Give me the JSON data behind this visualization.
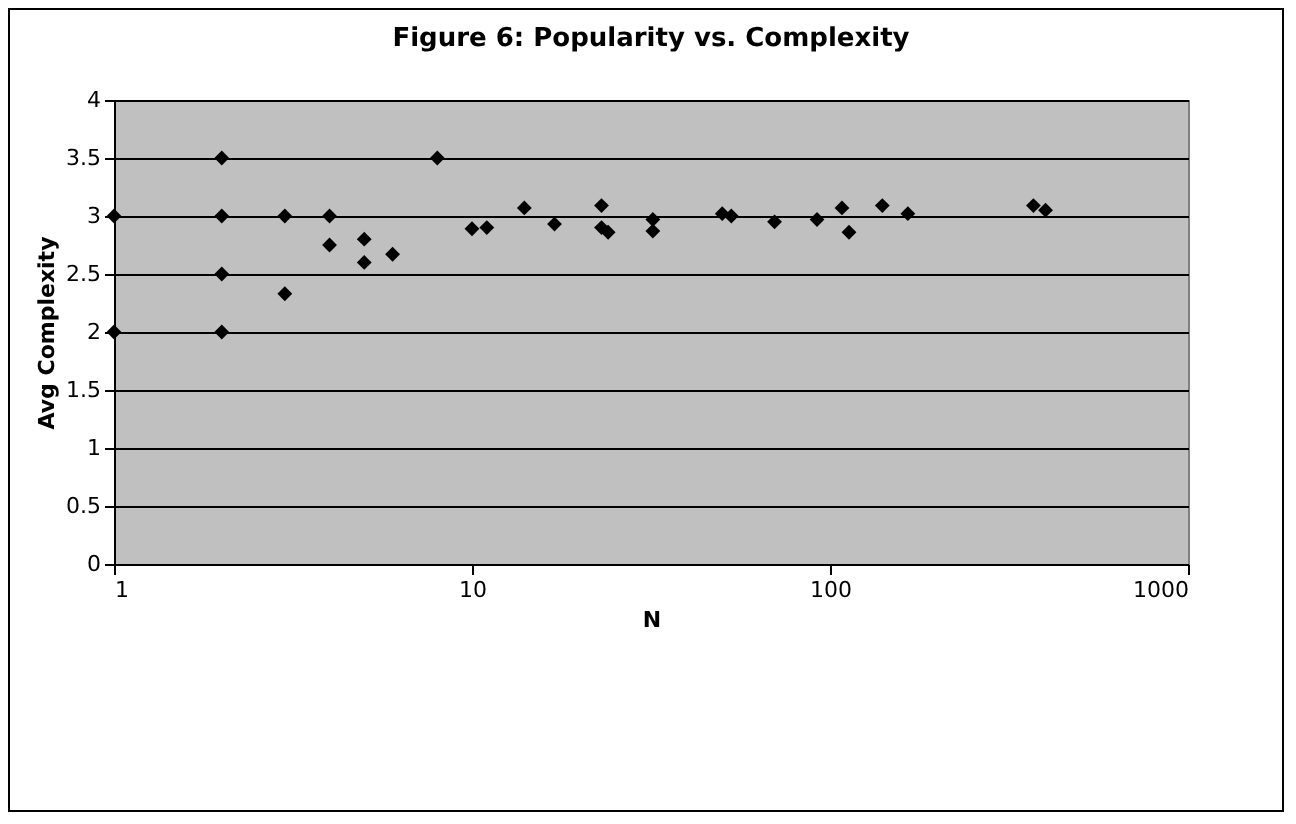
{
  "chart_data": {
    "type": "scatter",
    "title": "Figure 6: Popularity vs. Complexity",
    "xlabel": "N",
    "ylabel": "Avg Complexity",
    "x": [
      1,
      1,
      2,
      2,
      2,
      2,
      3,
      3,
      4,
      4,
      5,
      5,
      6,
      8,
      10,
      11,
      14,
      17,
      23,
      23,
      24,
      32,
      32,
      50,
      53,
      70,
      92,
      108,
      113,
      140,
      165,
      370,
      400
    ],
    "series": [
      {
        "color": "#000000",
        "values": [
          3,
          2,
          3.5,
          3,
          2.5,
          2,
          3,
          2.33,
          3,
          2.75,
          2.8,
          2.6,
          2.67,
          3.5,
          2.89,
          2.9,
          3.07,
          2.93,
          3.09,
          2.9,
          2.86,
          2.97,
          2.87,
          3.02,
          3.0,
          2.95,
          2.97,
          3.07,
          2.86,
          3.09,
          3.02,
          3.09,
          3.05
        ]
      }
    ],
    "log": "x",
    "xlim": [
      1,
      1000
    ],
    "xticks": [
      1,
      10,
      100,
      1000
    ],
    "ylim": [
      0,
      4
    ],
    "yticks": [
      0,
      0.5,
      1,
      1.5,
      2,
      2.5,
      3,
      3.5,
      4
    ],
    "grid": "y",
    "marker": "diamond"
  }
}
